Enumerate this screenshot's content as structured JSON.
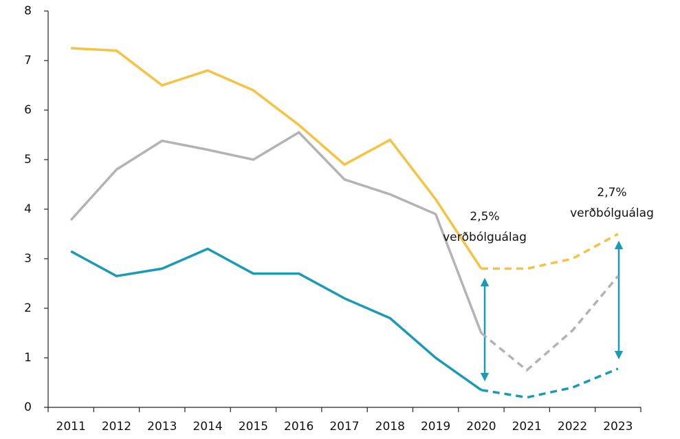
{
  "chart_data": {
    "type": "line",
    "categories": [
      "2011",
      "2012",
      "2013",
      "2014",
      "2015",
      "2016",
      "2017",
      "2018",
      "2019",
      "2020",
      "2021",
      "2022",
      "2023"
    ],
    "series": [
      {
        "color": "#f5c242",
        "values": [
          7.25,
          7.2,
          6.5,
          6.8,
          6.4,
          5.7,
          4.9,
          5.4,
          4.2,
          2.8,
          2.8,
          3.0,
          3.5
        ]
      },
      {
        "color": "#b3b3b3",
        "values": [
          3.78,
          4.8,
          5.38,
          5.2,
          5.0,
          5.55,
          4.6,
          4.3,
          3.9,
          1.5,
          0.75,
          1.55,
          2.65
        ]
      },
      {
        "color": "#1a9bb5",
        "values": [
          3.15,
          2.65,
          2.8,
          3.2,
          2.7,
          2.7,
          2.2,
          1.8,
          1.0,
          0.35,
          0.2,
          0.4,
          0.78
        ]
      }
    ],
    "dashed_from": 9,
    "ylim": [
      0,
      8
    ],
    "yticks": [
      0,
      1,
      2,
      3,
      4,
      5,
      6,
      7,
      8
    ],
    "annotations": [
      {
        "lines": [
          "2,5%",
          "verðbólguálag"
        ]
      },
      {
        "lines": [
          "2,7%",
          "verðbólguálag"
        ]
      }
    ]
  }
}
